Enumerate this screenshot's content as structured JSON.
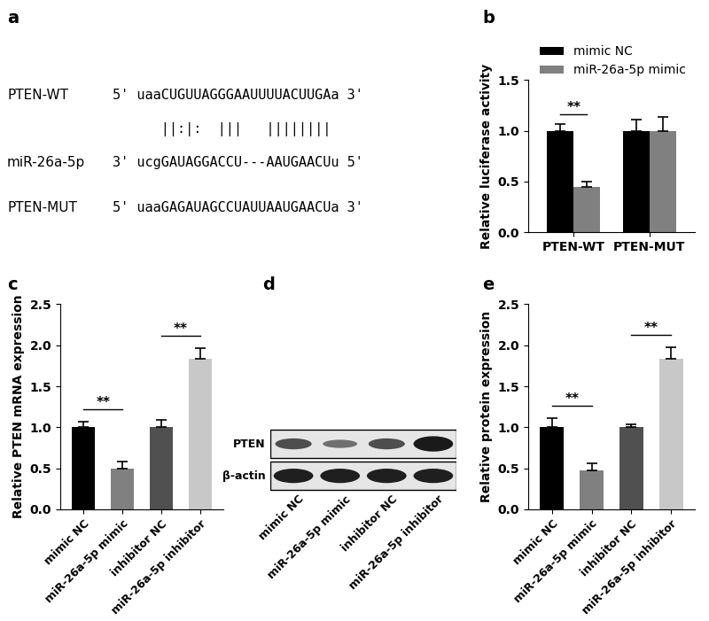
{
  "alignment": {
    "panel": "a",
    "wt": {
      "label": "PTEN-WT",
      "sequence": "5' uaaCUGUUAGGGAAUUUUACUUGAa 3'"
    },
    "pairing": "      ||:|:  |||   ||||||||",
    "mirna": {
      "label": "miR-26a-5p",
      "sequence": "3' ucgGAUAGGACCU---AAUGAACUu 5'"
    },
    "mut": {
      "label": "PTEN-MUT",
      "sequence": "5' uaaGAGAUAGCCUAUUAAUGAACUa 3'"
    }
  },
  "chart_data": [
    {
      "panel": "b",
      "type": "bar",
      "y_label": "Relative luciferase activity",
      "categories": [
        "PTEN-WT",
        "PTEN-MUT"
      ],
      "series": [
        {
          "name": "mimic NC",
          "color": "#000000",
          "values": [
            1.0,
            1.0
          ],
          "errors": [
            0.07,
            0.11
          ]
        },
        {
          "name": "miR-26a-5p mimic",
          "color": "#808080",
          "values": [
            0.45,
            1.0
          ],
          "errors": [
            0.05,
            0.14
          ]
        }
      ],
      "ylim": [
        0,
        1.5
      ],
      "yticks": [
        {
          "value": 0,
          "label": "0.0"
        },
        {
          "value": 0.5,
          "label": "0.5"
        },
        {
          "value": 1,
          "label": "1.0"
        },
        {
          "value": 1.5,
          "label": "1.5"
        }
      ],
      "legend": "upper left",
      "significance": [
        {
          "category": "PTEN-WT",
          "series": [
            "mimic NC",
            "miR-26a-5p mimic"
          ],
          "label": "**"
        }
      ]
    },
    {
      "panel": "c",
      "type": "bar",
      "y_label": "Relative PTEN mRNA expression",
      "categories": [
        "mimic NC",
        "miR-26a-5p mimic",
        "inhibitor NC",
        "miR-26a-5p inhibitor"
      ],
      "values": [
        1.0,
        0.5,
        1.0,
        1.84
      ],
      "errors": [
        0.07,
        0.08,
        0.09,
        0.13
      ],
      "colors": [
        "#000000",
        "#808080",
        "#505050",
        "#c8c8c8"
      ],
      "ylim": [
        0,
        2.5
      ],
      "yticks": [
        {
          "value": 0,
          "label": "0.0"
        },
        {
          "value": 0.5,
          "label": "0.5"
        },
        {
          "value": 1,
          "label": "1.0"
        },
        {
          "value": 1.5,
          "label": "1.5"
        },
        {
          "value": 2,
          "label": "2.0"
        },
        {
          "value": 2.5,
          "label": "2.5"
        }
      ],
      "significance": [
        {
          "categories": [
            "mimic NC",
            "miR-26a-5p mimic"
          ],
          "label": "**"
        },
        {
          "categories": [
            "inhibitor NC",
            "miR-26a-5p inhibitor"
          ],
          "label": "**"
        }
      ]
    },
    {
      "panel": "e",
      "type": "bar",
      "y_label": "Relative protein expression",
      "categories": [
        "mimic NC",
        "miR-26a-5p mimic",
        "inhibitor NC",
        "miR-26a-5p inhibitor"
      ],
      "values": [
        1.0,
        0.47,
        1.0,
        1.84
      ],
      "errors": [
        0.11,
        0.09,
        0.04,
        0.14
      ],
      "colors": [
        "#000000",
        "#808080",
        "#505050",
        "#c8c8c8"
      ],
      "ylim": [
        0,
        2.5
      ],
      "yticks": [
        {
          "value": 0,
          "label": "0.0"
        },
        {
          "value": 0.5,
          "label": "0.5"
        },
        {
          "value": 1,
          "label": "1.0"
        },
        {
          "value": 1.5,
          "label": "1.5"
        },
        {
          "value": 2,
          "label": "2.0"
        },
        {
          "value": 2.5,
          "label": "2.5"
        }
      ],
      "significance": [
        {
          "categories": [
            "mimic NC",
            "miR-26a-5p mimic"
          ],
          "label": "**"
        },
        {
          "categories": [
            "inhibitor NC",
            "miR-26a-5p inhibitor"
          ],
          "label": "**"
        }
      ]
    }
  ],
  "blot": {
    "panel": "d",
    "rows": [
      "PTEN",
      "β-actin"
    ],
    "lanes": [
      "mimic NC",
      "miR-26a-5p mimic",
      "inhibitor NC",
      "miR-26a-5p inhibitor"
    ]
  }
}
